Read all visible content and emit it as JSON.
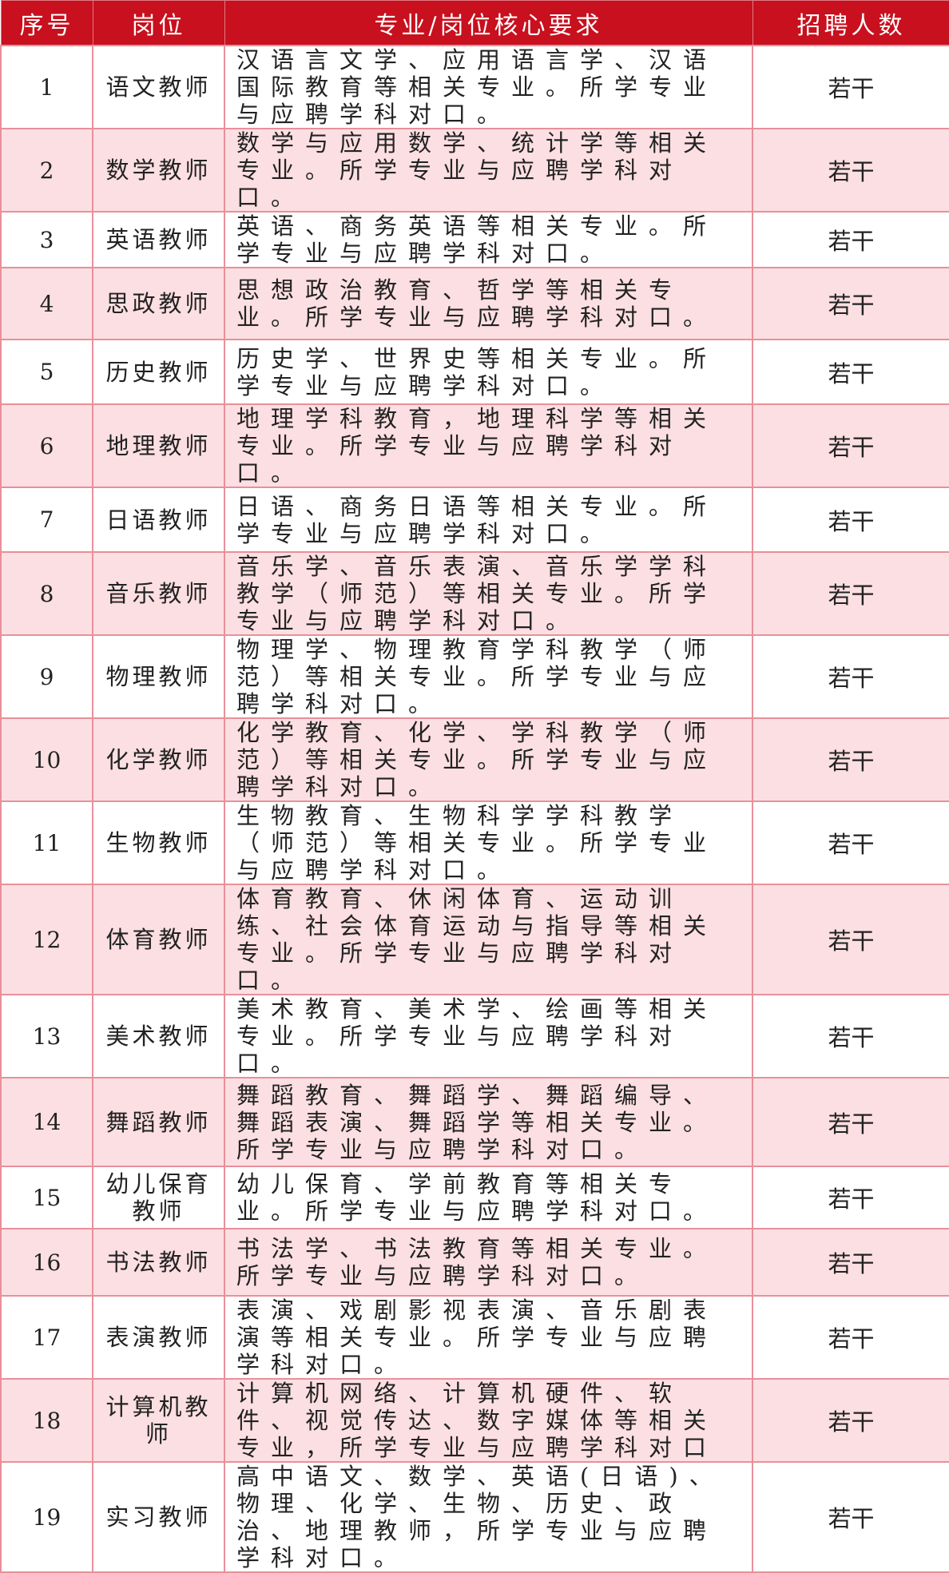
{
  "colors": {
    "header": "#c8101e",
    "row_alt": "#fcdfe2",
    "border": "#e8909b"
  },
  "headers": [
    "序号",
    "岗位",
    "专业/岗位核心要求",
    "招聘人数"
  ],
  "rows": [
    {
      "no": "1",
      "position": "语文教师",
      "requirement": "汉语言文学、应用语言学、汉语国际教育等相关专业。所学专业与应聘学科对口。",
      "count": "若干"
    },
    {
      "no": "2",
      "position": "数学教师",
      "requirement": "数学与应用数学、统计学等相关专业。所学专业与应聘学科对口。",
      "count": "若干"
    },
    {
      "no": "3",
      "position": "英语教师",
      "requirement": "英语、商务英语等相关专业。所学专业与应聘学科对口。",
      "count": "若干"
    },
    {
      "no": "4",
      "position": "思政教师",
      "requirement": "思想政治教育、哲学等相关专业。所学专业与应聘学科对口。",
      "count": "若干"
    },
    {
      "no": "5",
      "position": "历史教师",
      "requirement": "历史学、世界史等相关专业。所学专业与应聘学科对口。",
      "count": "若干"
    },
    {
      "no": "6",
      "position": "地理教师",
      "requirement": "地理学科教育，地理科学等相关专业。所学专业与应聘学科对口。",
      "count": "若干"
    },
    {
      "no": "7",
      "position": "日语教师",
      "requirement": "日语、商务日语等相关专业。所学专业与应聘学科对口。",
      "count": "若干"
    },
    {
      "no": "8",
      "position": "音乐教师",
      "requirement": "音乐学、音乐表演、音乐学学科教学（师范）等相关专业。所学专业与应聘学科对口。",
      "count": "若干"
    },
    {
      "no": "9",
      "position": "物理教师",
      "requirement": "物理学、物理教育学科教学（师范）等相关专业。所学专业与应聘学科对口。",
      "count": "若干"
    },
    {
      "no": "10",
      "position": "化学教师",
      "requirement": "化学教育、化学、学科教学（师范）等相关专业。所学专业与应聘学科对口。",
      "count": "若干"
    },
    {
      "no": "11",
      "position": "生物教师",
      "requirement": "生物教育、生物科学学科教学（师范）等相关专业。所学专业与应聘学科对口。",
      "count": "若干"
    },
    {
      "no": "12",
      "position": "体育教师",
      "requirement": "体育教育、休闲体育、运动训练、社会体育运动与指导等相关专业。所学专业与应聘学科对口。",
      "count": "若干"
    },
    {
      "no": "13",
      "position": "美术教师",
      "requirement": "美术教育、美术学、绘画等相关专业。所学专业与应聘学科对口。",
      "count": "若干"
    },
    {
      "no": "14",
      "position": "舞蹈教师",
      "requirement": "舞蹈教育、舞蹈学、舞蹈编导、舞蹈表演、舞蹈学等相关专业。所学专业与应聘学科对口。",
      "count": "若干"
    },
    {
      "no": "15",
      "position": "幼儿保育教师",
      "requirement": "幼儿保育、学前教育等相关专业。所学专业与应聘学科对口。",
      "count": "若干"
    },
    {
      "no": "16",
      "position": "书法教师",
      "requirement": "书法学、书法教育等相关专业。所学专业与应聘学科对口。",
      "count": "若干"
    },
    {
      "no": "17",
      "position": "表演教师",
      "requirement": "表演、戏剧影视表演、音乐剧表演等相关专业。所学专业与应聘学科对口。",
      "count": "若干"
    },
    {
      "no": "18",
      "position": "计算机教师",
      "requirement": "计算机网络、计算机硬件、软件、视觉传达、数字媒体等相关专业，所学专业与应聘学科对口",
      "count": "若干"
    },
    {
      "no": "19",
      "position": "实习教师",
      "requirement": "高中语文、数学、英语(日语)、物理、化学、生物、历史、政治、地理教师，所学专业与应聘学科对口。",
      "count": "若干"
    }
  ]
}
